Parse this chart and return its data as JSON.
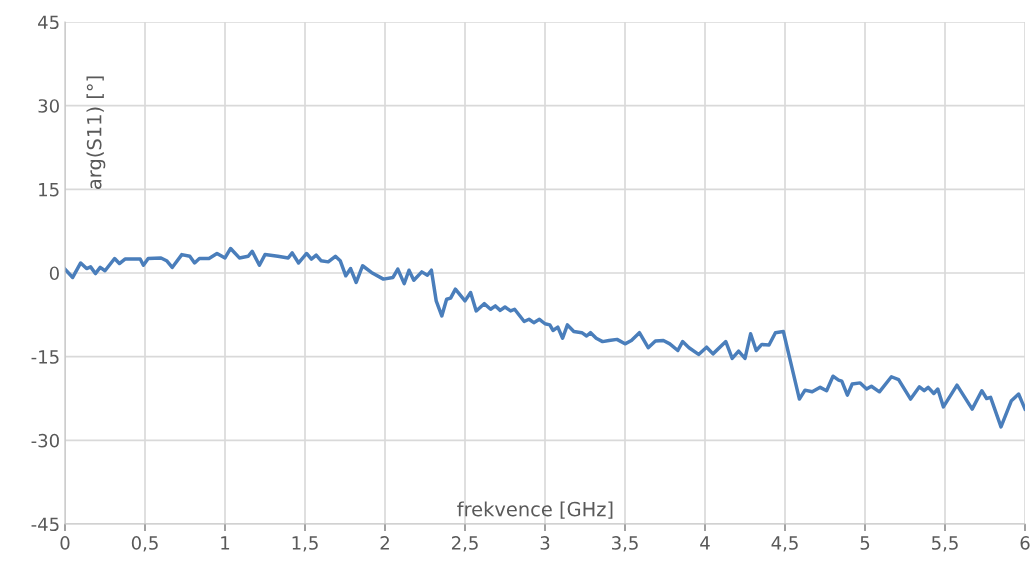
{
  "chart_data": {
    "type": "line",
    "xlabel": "frekvence [GHz]",
    "ylabel": "arg(S11) [°]",
    "xlim": [
      0,
      6
    ],
    "ylim": [
      -45,
      45
    ],
    "xticks": [
      0,
      {
        "value": 0.5,
        "label": "0,5"
      },
      1,
      {
        "value": 1.5,
        "label": "1,5"
      },
      2,
      {
        "value": 2.5,
        "label": "2,5"
      },
      3,
      {
        "value": 3.5,
        "label": "3,5"
      },
      4,
      {
        "value": 4.5,
        "label": "4,5"
      },
      5,
      {
        "value": 5.5,
        "label": "5,5"
      },
      6
    ],
    "yticks": [
      -45,
      -30,
      -15,
      0,
      15,
      30,
      45
    ],
    "grid": true,
    "marker": "none",
    "line_style": "solid",
    "series": [
      {
        "color": "#4a7ebb",
        "x": [
          0,
          0.048,
          0.098,
          0.135,
          0.16,
          0.19,
          0.22,
          0.25,
          0.31,
          0.34,
          0.375,
          0.47,
          0.49,
          0.52,
          0.6,
          0.635,
          0.67,
          0.73,
          0.78,
          0.81,
          0.84,
          0.9,
          0.95,
          1.0,
          1.035,
          1.09,
          1.145,
          1.17,
          1.215,
          1.25,
          1.33,
          1.395,
          1.42,
          1.46,
          1.51,
          1.54,
          1.57,
          1.6,
          1.645,
          1.69,
          1.72,
          1.755,
          1.785,
          1.82,
          1.86,
          1.915,
          1.99,
          2.05,
          2.08,
          2.12,
          2.15,
          2.18,
          2.23,
          2.265,
          2.29,
          2.32,
          2.355,
          2.385,
          2.41,
          2.44,
          2.5,
          2.535,
          2.57,
          2.62,
          2.66,
          2.69,
          2.72,
          2.75,
          2.785,
          2.81,
          2.87,
          2.9,
          2.93,
          2.965,
          3.0,
          3.03,
          3.05,
          3.08,
          3.11,
          3.14,
          3.18,
          3.23,
          3.26,
          3.285,
          3.32,
          3.36,
          3.4,
          3.45,
          3.5,
          3.54,
          3.59,
          3.645,
          3.69,
          3.74,
          3.78,
          3.83,
          3.86,
          3.9,
          3.96,
          4.01,
          4.05,
          4.13,
          4.17,
          4.21,
          4.25,
          4.285,
          4.32,
          4.355,
          4.4,
          4.44,
          4.49,
          4.59,
          4.625,
          4.67,
          4.72,
          4.76,
          4.8,
          4.835,
          4.855,
          4.89,
          4.92,
          4.97,
          5.01,
          5.04,
          5.09,
          5.165,
          5.21,
          5.285,
          5.34,
          5.37,
          5.395,
          5.43,
          5.455,
          5.49,
          5.575,
          5.67,
          5.73,
          5.76,
          5.785,
          5.85,
          5.915,
          5.96,
          6.0
        ],
        "values": [
          0.7,
          -0.8,
          1.8,
          0.8,
          1.1,
          -0.1,
          1.0,
          0.4,
          2.6,
          1.7,
          2.5,
          2.5,
          1.4,
          2.6,
          2.7,
          2.2,
          1.0,
          3.3,
          3.0,
          1.8,
          2.6,
          2.6,
          3.5,
          2.7,
          4.4,
          2.7,
          3.0,
          3.9,
          1.4,
          3.3,
          3.0,
          2.7,
          3.6,
          1.8,
          3.5,
          2.5,
          3.2,
          2.2,
          2.0,
          3.0,
          2.2,
          -0.5,
          0.8,
          -1.7,
          1.3,
          0.1,
          -1.1,
          -0.8,
          0.7,
          -1.9,
          0.5,
          -1.3,
          0.2,
          -0.4,
          0.5,
          -5.0,
          -7.7,
          -4.7,
          -4.5,
          -2.9,
          -5.0,
          -3.5,
          -6.8,
          -5.5,
          -6.5,
          -5.9,
          -6.7,
          -6.1,
          -6.8,
          -6.5,
          -8.7,
          -8.3,
          -8.9,
          -8.3,
          -9.1,
          -9.3,
          -10.3,
          -9.7,
          -11.7,
          -9.3,
          -10.5,
          -10.7,
          -11.3,
          -10.7,
          -11.7,
          -12.3,
          -12.1,
          -11.9,
          -12.7,
          -12.1,
          -10.7,
          -13.4,
          -12.2,
          -12.1,
          -12.7,
          -13.9,
          -12.3,
          -13.4,
          -14.6,
          -13.3,
          -14.5,
          -12.3,
          -15.3,
          -14.0,
          -15.3,
          -10.9,
          -13.9,
          -12.8,
          -12.9,
          -10.7,
          -10.5,
          -22.6,
          -21.0,
          -21.3,
          -20.5,
          -21.1,
          -18.5,
          -19.2,
          -19.4,
          -21.9,
          -19.9,
          -19.7,
          -20.8,
          -20.3,
          -21.3,
          -18.6,
          -19.1,
          -22.6,
          -20.4,
          -21.1,
          -20.5,
          -21.6,
          -20.8,
          -24.0,
          -20.1,
          -24.4,
          -21.1,
          -22.5,
          -22.3,
          -27.6,
          -22.9,
          -21.7,
          -24.4
        ]
      }
    ]
  }
}
